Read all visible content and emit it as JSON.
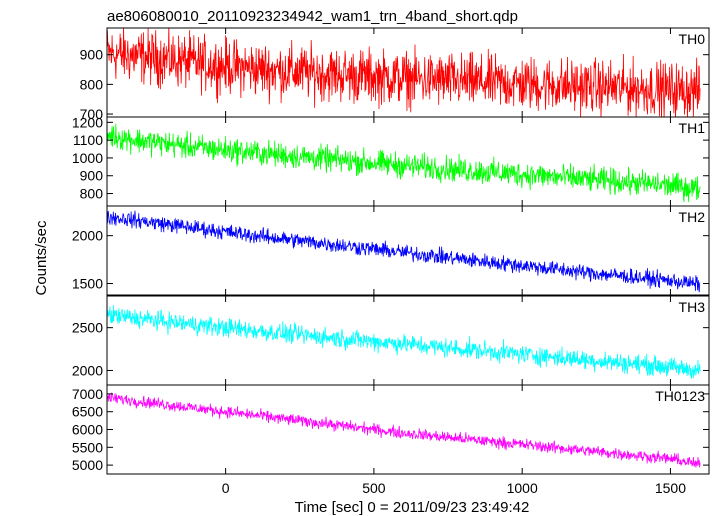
{
  "chart_data": {
    "type": "line",
    "title": "ae806080010_20110923234942_wam1_trn_4band_short.qdp",
    "xlabel": "Time [sec] 0 = 2011/09/23 23:49:42",
    "ylabel": "Counts/sec",
    "xlim": [
      -400,
      1630
    ],
    "x_ticks": [
      0,
      500,
      1000,
      1500
    ],
    "x_tick_labels": [
      "0",
      "500",
      "1000",
      "1500"
    ],
    "grid": false,
    "panels": [
      {
        "label": "TH0",
        "color": "#ff0000",
        "ylim": [
          690,
          990
        ],
        "y_ticks": [
          700,
          800,
          900
        ],
        "y_tick_labels": [
          "700",
          "800",
          "900"
        ],
        "series": [
          {
            "x": [
              -400,
              -300,
              -200,
              -100,
              0,
              100,
              200,
              300,
              400,
              500,
              600,
              700,
              800,
              900,
              1000,
              1100,
              1200,
              1300,
              1400,
              1500,
              1600
            ],
            "y": [
              905,
              895,
              885,
              872,
              862,
              852,
              845,
              838,
              832,
              826,
              820,
              815,
              810,
              806,
              802,
              798,
              794,
              790,
              786,
              782,
              778
            ],
            "noise": 45
          }
        ]
      },
      {
        "label": "TH1",
        "color": "#00ff00",
        "ylim": [
          730,
          1230
        ],
        "y_ticks": [
          800,
          900,
          1000,
          1100,
          1200
        ],
        "y_tick_labels": [
          "800",
          "900",
          "1000",
          "1100",
          "1200"
        ],
        "series": [
          {
            "x": [
              -400,
              -300,
              -200,
              -100,
              0,
              100,
              200,
              300,
              400,
              500,
              600,
              700,
              800,
              900,
              1000,
              1100,
              1200,
              1300,
              1400,
              1500,
              1600
            ],
            "y": [
              1130,
              1100,
              1080,
              1060,
              1045,
              1030,
              1015,
              1000,
              985,
              972,
              958,
              945,
              932,
              920,
              908,
              895,
              882,
              870,
              858,
              845,
              825
            ],
            "noise": 35
          }
        ]
      },
      {
        "label": "TH2",
        "color": "#0000ff",
        "ylim": [
          1380,
          2310
        ],
        "y_ticks": [
          1500,
          2000
        ],
        "y_tick_labels": [
          "1500",
          "2000"
        ],
        "series": [
          {
            "x": [
              -400,
              -300,
              -200,
              -100,
              0,
              100,
              200,
              300,
              400,
              500,
              600,
              700,
              800,
              900,
              1000,
              1100,
              1200,
              1300,
              1400,
              1500,
              1600
            ],
            "y": [
              2200,
              2160,
              2120,
              2080,
              2040,
              2000,
              1965,
              1930,
              1895,
              1860,
              1825,
              1790,
              1755,
              1720,
              1690,
              1655,
              1620,
              1590,
              1560,
              1530,
              1490
            ],
            "noise": 40
          }
        ]
      },
      {
        "label": "TH3",
        "color": "#00ffff",
        "ylim": [
          1830,
          2870
        ],
        "y_ticks": [
          2000,
          2500
        ],
        "y_tick_labels": [
          "2000",
          "2500"
        ],
        "series": [
          {
            "x": [
              -400,
              -300,
              -200,
              -100,
              0,
              100,
              200,
              300,
              400,
              500,
              600,
              700,
              800,
              900,
              1000,
              1100,
              1200,
              1300,
              1400,
              1500,
              1600
            ],
            "y": [
              2650,
              2610,
              2570,
              2535,
              2500,
              2465,
              2430,
              2400,
              2370,
              2340,
              2310,
              2280,
              2250,
              2220,
              2190,
              2160,
              2130,
              2100,
              2070,
              2040,
              2000
            ],
            "noise": 55
          }
        ]
      },
      {
        "label": "TH0123",
        "color": "#ff00ff",
        "ylim": [
          4750,
          7250
        ],
        "y_ticks": [
          5000,
          5500,
          6000,
          6500,
          7000
        ],
        "y_tick_labels": [
          "5000",
          "5500",
          "6000",
          "6500",
          "7000"
        ],
        "series": [
          {
            "x": [
              -400,
              -300,
              -200,
              -100,
              0,
              100,
              200,
              300,
              400,
              500,
              600,
              700,
              800,
              900,
              1000,
              1100,
              1200,
              1300,
              1400,
              1500,
              1600
            ],
            "y": [
              6900,
              6800,
              6700,
              6600,
              6500,
              6400,
              6300,
              6200,
              6100,
              6000,
              5900,
              5820,
              5740,
              5660,
              5580,
              5500,
              5420,
              5340,
              5260,
              5180,
              5020
            ],
            "noise": 80
          }
        ]
      }
    ]
  }
}
